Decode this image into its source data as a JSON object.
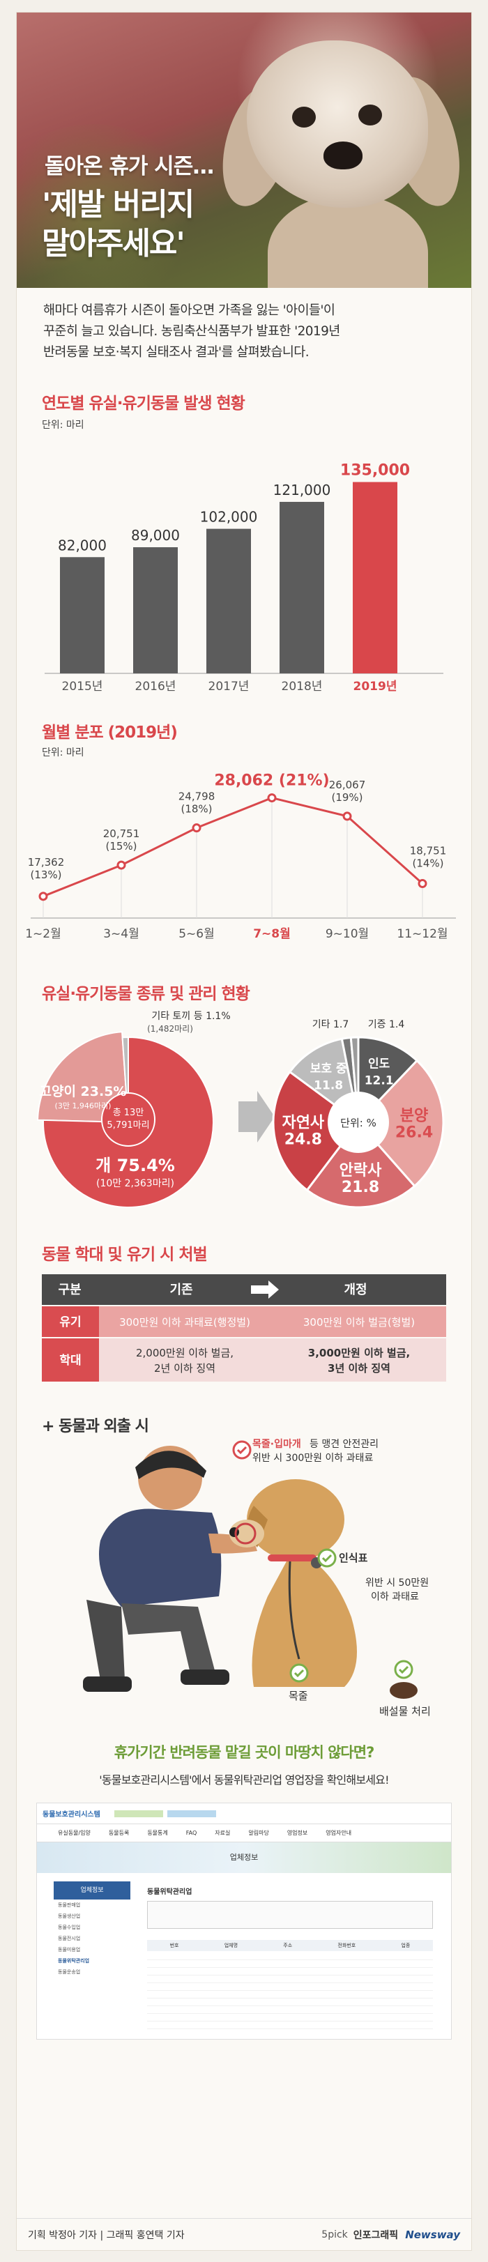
{
  "hero": {
    "line1": "돌아온 휴가 시즌…",
    "line2a": "'제발 버리지",
    "line2b": "말아주세요'"
  },
  "intro": {
    "l1": "해마다 여름휴가 시즌이 돌아오면 가족을 잃는 '아이들'이",
    "l2": "꾸준히 늘고 있습니다. 농림축산식품부가 발표한 '2019년",
    "l3": "반려동물 보호·복지 실태조사 결과'를 살펴봤습니다."
  },
  "yearly": {
    "title": "연도별 유실·유기동물 발생 현황",
    "unit": "단위: 마리",
    "chart_data": {
      "type": "bar",
      "categories": [
        "2015년",
        "2016년",
        "2017년",
        "2018년",
        "2019년"
      ],
      "values": [
        82000,
        89000,
        102000,
        121000,
        135000
      ],
      "labels": [
        "82,000",
        "89,000",
        "102,000",
        "121,000",
        "135,000"
      ],
      "ylim": [
        0,
        150000
      ],
      "colors": [
        "#5c5c5c",
        "#5c5c5c",
        "#5c5c5c",
        "#5c5c5c",
        "#d9474b"
      ]
    }
  },
  "monthly": {
    "title": "월별 분포 (2019년)",
    "unit": "단위: 마리",
    "chart_data": {
      "type": "line",
      "categories": [
        "1~2월",
        "3~4월",
        "5~6월",
        "7~8월",
        "9~10월",
        "11~12월"
      ],
      "values": [
        17362,
        20751,
        24798,
        28062,
        26067,
        18751
      ],
      "labels": [
        "17,362",
        "20,751",
        "24,798",
        "28,062 (21%)",
        "26,067",
        "18,751"
      ],
      "pct": [
        "(13%)",
        "(15%)",
        "(18%)",
        "",
        "(19%)",
        "(14%)"
      ],
      "ylim": [
        15000,
        30000
      ],
      "color": "#d9474b"
    }
  },
  "species": {
    "title": "유실·유기동물 종류 및 관리 현황",
    "chart_data": [
      {
        "type": "pie",
        "categories": [
          "개",
          "고양이",
          "기타 토끼 등"
        ],
        "values": [
          75.4,
          23.5,
          1.1
        ],
        "labels": [
          "개 75.4%",
          "고양이 23.5%",
          "기타 토끼 등 1.1%"
        ],
        "sub": [
          "(10만 2,363마리)",
          "(3만 1,946마리)",
          "(1,482마리)"
        ],
        "center": [
          "총 13만",
          "5,791마리"
        ],
        "colors": [
          "#d94c50",
          "#e39a97",
          "#bdbdbd"
        ]
      },
      {
        "type": "pie",
        "unit": "단위: %",
        "categories": [
          "인도",
          "분양",
          "안락사",
          "자연사",
          "보호 중",
          "기타",
          "기증"
        ],
        "values": [
          12.1,
          26.4,
          21.8,
          24.8,
          11.8,
          1.7,
          1.4
        ],
        "labels": [
          "인도",
          "분양",
          "안락사",
          "자연사",
          "보호 중",
          "기타 1.7",
          "기증 1.4"
        ],
        "nums": [
          "12.1",
          "26.4",
          "21.8",
          "24.8",
          "11.8"
        ],
        "colors": [
          "#5a5a5a",
          "#e8a3a0",
          "#d66a6d",
          "#c94146",
          "#bcbcbc",
          "#777777",
          "#9c9c9c"
        ]
      }
    ]
  },
  "penalty": {
    "title": "동물 학대 및 유기 시 처벌",
    "header": [
      "구분",
      "기존",
      "개정"
    ],
    "rows": [
      {
        "k": "유기",
        "old": "300만원 이하 과태료(행정벌)",
        "new": "300만원 이하 벌금(형벌)"
      },
      {
        "k": "학대",
        "old1": "2,000만원 이하 벌금,",
        "old2": "2년 이하 징역",
        "new1": "3,000만원 이하 벌금,",
        "new2": "3년 이하 징역"
      }
    ]
  },
  "outing": {
    "title": "+ 동물과 외출 시",
    "note1a": "목줄·입마개",
    "note1b": " 등 맹견 안전관리",
    "note1c": "위반 시 300만원 이하 과태료",
    "note2": "인식표",
    "note3a": "위반 시 50만원",
    "note3b": "이하 과태료",
    "lbl_collar": "목줄",
    "lbl_waste": "배설물 처리"
  },
  "closing": {
    "q": "휴가기간 반려동물 맡길 곳이 마땅치 않다면?",
    "a": "'동물보호관리시스템'에서 동물위탁관리업 영업장을 확인해보세요!"
  },
  "screenshot": {
    "logo": "동물보호관리시스템",
    "menu": [
      "유실동물/입양",
      "동물등록",
      "동물통계",
      "FAQ",
      "자료실",
      "알림마당",
      "영업정보",
      "영업자안내"
    ],
    "banner": "업체정보",
    "side_title": "업체정보",
    "side_items": [
      "동물판매업",
      "동물생산업",
      "동물수입업",
      "동물전시업",
      "동물미용업",
      "동물위탁관리업",
      "동물운송업"
    ],
    "page_title": "동물위탁관리업",
    "table_head": [
      "번호",
      "업체명",
      "주소",
      "전화번호",
      "업종"
    ]
  },
  "footer": {
    "credit": "기획 박정아 기자 | 그래픽 홍연택 기자",
    "brand1": "5pick",
    "brand2": "인포그래픽",
    "brand3": "Newsway"
  }
}
